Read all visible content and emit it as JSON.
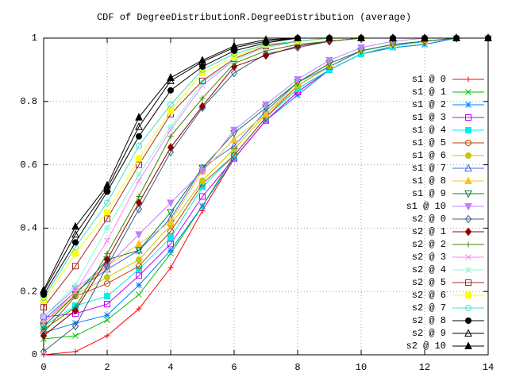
{
  "chart_data": {
    "type": "line",
    "title": "CDF of DegreeDistributionR.DegreeDistribution (average)",
    "x": [
      0,
      1,
      2,
      3,
      4,
      5,
      6,
      7,
      8,
      9,
      10,
      11,
      12,
      13,
      14
    ],
    "xlim": [
      0,
      14
    ],
    "xticks": [
      0,
      2,
      4,
      6,
      8,
      10,
      12,
      14
    ],
    "ylim": [
      0,
      1
    ],
    "yticks": [
      0,
      0.2,
      0.4,
      0.6,
      0.8,
      1
    ],
    "grid": true,
    "legend": "right",
    "series": [
      {
        "name": "s1 @ 0",
        "color": "#ff0000",
        "marker": "plus",
        "values": [
          0,
          0.01,
          0.06,
          0.145,
          0.275,
          0.455,
          0.62,
          0.74,
          0.83,
          0.9,
          0.95,
          0.975,
          0.99,
          1,
          1
        ]
      },
      {
        "name": "s1 @ 1",
        "color": "#00c000",
        "marker": "cross",
        "values": [
          0.05,
          0.06,
          0.11,
          0.19,
          0.32,
          0.47,
          0.63,
          0.75,
          0.84,
          0.9,
          0.95,
          0.97,
          0.98,
          1,
          1
        ]
      },
      {
        "name": "s1 @ 2",
        "color": "#0080ff",
        "marker": "star",
        "values": [
          0.07,
          0.1,
          0.125,
          0.22,
          0.33,
          0.47,
          0.62,
          0.74,
          0.82,
          0.9,
          0.95,
          0.97,
          0.98,
          1,
          1
        ]
      },
      {
        "name": "s1 @ 3",
        "color": "#c000ff",
        "marker": "box",
        "values": [
          0.12,
          0.13,
          0.16,
          0.25,
          0.35,
          0.5,
          0.62,
          0.74,
          0.83,
          0.9,
          0.95,
          0.975,
          0.99,
          1,
          1
        ]
      },
      {
        "name": "s1 @ 4",
        "color": "#00eeee",
        "marker": "filled-box",
        "values": [
          0.09,
          0.155,
          0.185,
          0.27,
          0.37,
          0.53,
          0.63,
          0.75,
          0.84,
          0.9,
          0.95,
          0.975,
          0.99,
          1,
          1
        ]
      },
      {
        "name": "s1 @ 5",
        "color": "#c04000",
        "marker": "circle",
        "values": [
          0.07,
          0.185,
          0.225,
          0.28,
          0.39,
          0.54,
          0.63,
          0.75,
          0.85,
          0.91,
          0.96,
          0.98,
          0.99,
          1,
          1
        ]
      },
      {
        "name": "s1 @ 6",
        "color": "#c8c800",
        "marker": "filled-circle",
        "values": [
          0.1,
          0.19,
          0.245,
          0.3,
          0.41,
          0.55,
          0.65,
          0.76,
          0.85,
          0.91,
          0.96,
          0.98,
          0.99,
          1,
          1
        ]
      },
      {
        "name": "s1 @ 7",
        "color": "#4169e1",
        "marker": "triangle",
        "values": [
          0.11,
          0.2,
          0.27,
          0.33,
          0.43,
          0.59,
          0.66,
          0.77,
          0.86,
          0.91,
          0.96,
          0.98,
          0.99,
          1,
          1
        ]
      },
      {
        "name": "s1 @ 8",
        "color": "#ffc020",
        "marker": "filled-triangle",
        "values": [
          0.1,
          0.2,
          0.28,
          0.35,
          0.42,
          0.58,
          0.68,
          0.76,
          0.86,
          0.92,
          0.96,
          0.98,
          0.99,
          1,
          1
        ]
      },
      {
        "name": "s1 @ 9",
        "color": "#008040",
        "marker": "down-triangle",
        "values": [
          0.09,
          0.19,
          0.3,
          0.33,
          0.45,
          0.59,
          0.7,
          0.78,
          0.86,
          0.92,
          0.96,
          0.98,
          0.99,
          1,
          1
        ]
      },
      {
        "name": "s1 @ 10",
        "color": "#c080ff",
        "marker": "filled-down-triangle",
        "values": [
          0.12,
          0.21,
          0.28,
          0.38,
          0.48,
          0.58,
          0.71,
          0.79,
          0.87,
          0.93,
          0.97,
          0.99,
          1,
          1,
          1
        ]
      },
      {
        "name": "s2 @ 0",
        "color": "#306080",
        "marker": "diamond",
        "values": [
          0.01,
          0.09,
          0.28,
          0.46,
          0.64,
          0.78,
          0.89,
          0.95,
          0.97,
          0.99,
          1,
          1,
          1,
          1,
          1
        ]
      },
      {
        "name": "s2 @ 1",
        "color": "#8b0000",
        "marker": "filled-diamond",
        "values": [
          0.06,
          0.14,
          0.3,
          0.48,
          0.655,
          0.785,
          0.91,
          0.945,
          0.975,
          0.99,
          1,
          1,
          1,
          1,
          1
        ]
      },
      {
        "name": "s2 @ 2",
        "color": "#408000",
        "marker": "plus",
        "values": [
          0.08,
          0.15,
          0.32,
          0.5,
          0.69,
          0.81,
          0.92,
          0.96,
          0.98,
          0.99,
          1,
          1,
          1,
          1,
          1
        ]
      },
      {
        "name": "s2 @ 3",
        "color": "#ff80ff",
        "marker": "cross",
        "values": [
          0.1,
          0.2,
          0.36,
          0.55,
          0.71,
          0.85,
          0.93,
          0.97,
          0.99,
          1,
          1,
          1,
          1,
          1,
          1
        ]
      },
      {
        "name": "s2 @ 4",
        "color": "#7fffd4",
        "marker": "star",
        "values": [
          0.12,
          0.22,
          0.4,
          0.57,
          0.72,
          0.86,
          0.93,
          0.97,
          0.99,
          1,
          1,
          1,
          1,
          1,
          1
        ]
      },
      {
        "name": "s2 @ 5",
        "color": "#a52a2a",
        "marker": "box",
        "values": [
          0.15,
          0.28,
          0.43,
          0.6,
          0.76,
          0.865,
          0.935,
          0.975,
          0.99,
          1,
          1,
          1,
          1,
          1,
          1
        ]
      },
      {
        "name": "s2 @ 6",
        "color": "#ffff00",
        "marker": "filled-box",
        "values": [
          0.17,
          0.32,
          0.45,
          0.62,
          0.77,
          0.89,
          0.94,
          0.98,
          0.99,
          1,
          1,
          1,
          1,
          1,
          1
        ]
      },
      {
        "name": "s2 @ 7",
        "color": "#40e0d0",
        "marker": "circle",
        "values": [
          0.18,
          0.34,
          0.48,
          0.66,
          0.79,
          0.9,
          0.95,
          0.98,
          0.99,
          1,
          1,
          1,
          1,
          1,
          1
        ]
      },
      {
        "name": "s2 @ 8",
        "color": "#000000",
        "marker": "filled-circle",
        "values": [
          0.19,
          0.355,
          0.515,
          0.69,
          0.835,
          0.91,
          0.96,
          0.985,
          1,
          1,
          1,
          1,
          1,
          1,
          1
        ]
      },
      {
        "name": "s2 @ 9",
        "color": "#000000",
        "marker": "triangle",
        "values": [
          0.2,
          0.38,
          0.525,
          0.72,
          0.865,
          0.925,
          0.97,
          0.99,
          1,
          1,
          1,
          1,
          1,
          1,
          1
        ]
      },
      {
        "name": "s2 @ 10",
        "color": "#000000",
        "marker": "filled-triangle",
        "values": [
          0.205,
          0.405,
          0.535,
          0.75,
          0.875,
          0.93,
          0.975,
          0.995,
          1,
          1,
          1,
          1,
          1,
          1,
          1
        ]
      }
    ]
  }
}
